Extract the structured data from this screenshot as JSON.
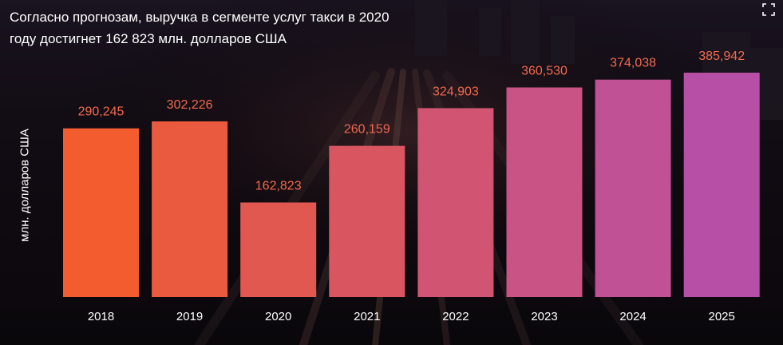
{
  "title": {
    "line1": "Согласно прогнозам, выручка в сегменте услуг такси в 2020",
    "line2": "году достигнет 162 823 млн. долларов США"
  },
  "chart_data": {
    "type": "bar",
    "title": "Согласно прогнозам, выручка в сегменте услуг такси в 2020 году достигнет 162 823 млн. долларов США",
    "xlabel": "",
    "ylabel": "млн. долларов США",
    "categories": [
      "2018",
      "2019",
      "2020",
      "2021",
      "2022",
      "2023",
      "2024",
      "2025"
    ],
    "values": [
      290245,
      302226,
      162823,
      260159,
      324903,
      360530,
      374038,
      385942
    ],
    "value_labels": [
      "290,245",
      "302,226",
      "162,823",
      "260,159",
      "324,903",
      "360,530",
      "374,038",
      "385,942"
    ],
    "ylim": [
      0,
      400000
    ],
    "grid": false,
    "legend": "none"
  },
  "colors": {
    "bar_start": "#f25c2e",
    "bar_end": "#b84fa6",
    "value_label": "#f26a4f",
    "axis_text": "#ffffff"
  },
  "icons": {
    "corner": "expand-icon"
  }
}
